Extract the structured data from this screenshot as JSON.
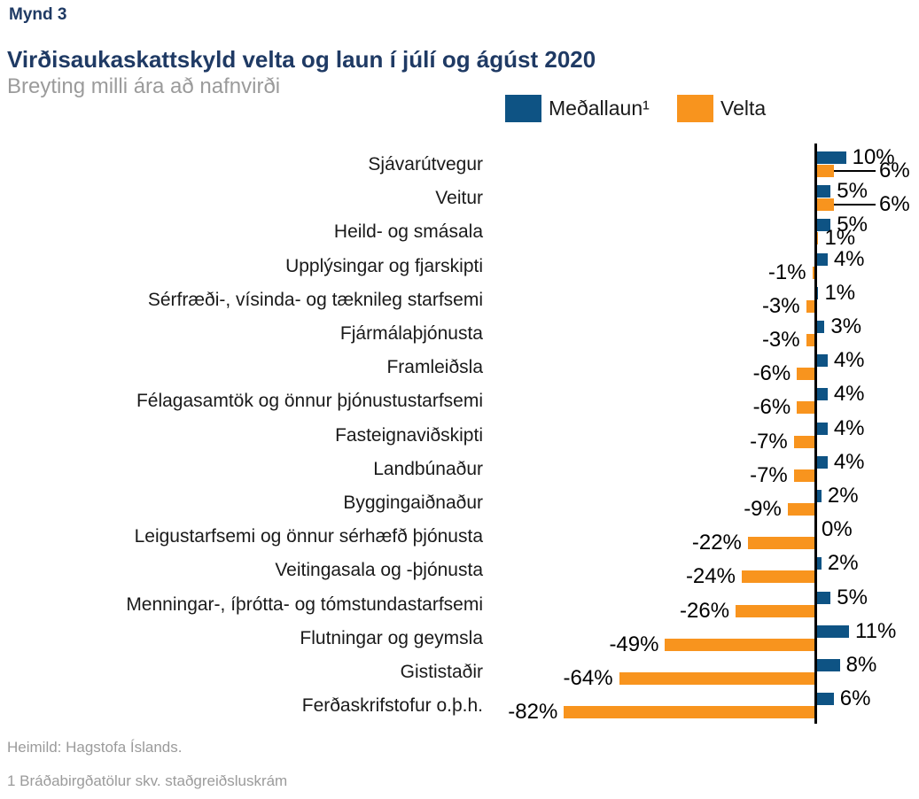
{
  "header": {
    "figure_label": "Mynd 3",
    "title": "Virðisaukaskattskyld velta og laun í júlí og ágúst 2020",
    "subtitle": "Breyting milli ára að nafnvirði"
  },
  "legend": {
    "items": [
      {
        "label": "Meðallaun¹",
        "color": "#0e5384"
      },
      {
        "label": "Velta",
        "color": "#f8941e"
      }
    ]
  },
  "colors": {
    "title_navy": "#1f3a64",
    "subtitle_gray": "#9b9b9b",
    "wages_blue": "#0e5384",
    "turnover_orange": "#f8941e",
    "axis_black": "#000000",
    "footer_gray": "#9b9b9b"
  },
  "footer": {
    "source": "Heimild: Hagstofa Íslands.",
    "footnote": "1 Bráðabirgðatölur skv. staðgreiðsluskrám"
  },
  "chart_data": {
    "type": "bar",
    "orientation": "horizontal",
    "title": "Virðisaukaskattskyld velta og laun í júlí og ágúst 2020",
    "subtitle": "Breyting milli ára að nafnvirði",
    "unit": "%",
    "grid": false,
    "legend_position": "top-right",
    "axis_position": "zero",
    "xlim": [
      -90,
      15
    ],
    "categories": [
      "Sjávarútvegur",
      "Veitur",
      "Heild- og smásala",
      "Upplýsingar og fjarskipti",
      "Sérfræði-, vísinda- og tæknileg starfsemi",
      "Fjármálaþjónusta",
      "Framleiðsla",
      "Félagasamtök og önnur þjónustustarfsemi",
      "Fasteignaviðskipti",
      "Landbúnaður",
      "Byggingaiðnaður",
      "Leigustarfsemi og önnur sérhæfð þjónusta",
      "Veitingasala og -þjónusta",
      "Menningar-, íþrótta- og tómstundastarfsemi",
      "Flutningar og geymsla",
      "Gististaðir",
      "Ferðaskrifstofur o.þ.h."
    ],
    "series": [
      {
        "name": "Meðallaun¹",
        "color": "#0e5384",
        "values": [
          10,
          5,
          5,
          4,
          1,
          3,
          4,
          4,
          4,
          4,
          2,
          0,
          2,
          5,
          11,
          8,
          6
        ],
        "labels": [
          "10%",
          "5%",
          "5%",
          "4%",
          "1%",
          "3%",
          "4%",
          "4%",
          "4%",
          "4%",
          "2%",
          "0%",
          "2%",
          "5%",
          "11%",
          "8%",
          "6%"
        ]
      },
      {
        "name": "Velta",
        "color": "#f8941e",
        "values": [
          6,
          6,
          1,
          -1,
          -3,
          -3,
          -6,
          -6,
          -7,
          -7,
          -9,
          -22,
          -24,
          -26,
          -49,
          -64,
          -82
        ],
        "labels": [
          "6%",
          "6%",
          "1%",
          "-1%",
          "-3%",
          "-3%",
          "-6%",
          "-6%",
          "-7%",
          "-7%",
          "-9%",
          "-22%",
          "-24%",
          "-26%",
          "-49%",
          "-64%",
          "-82%"
        ]
      }
    ],
    "leader_label_rows": [
      0,
      1
    ]
  }
}
